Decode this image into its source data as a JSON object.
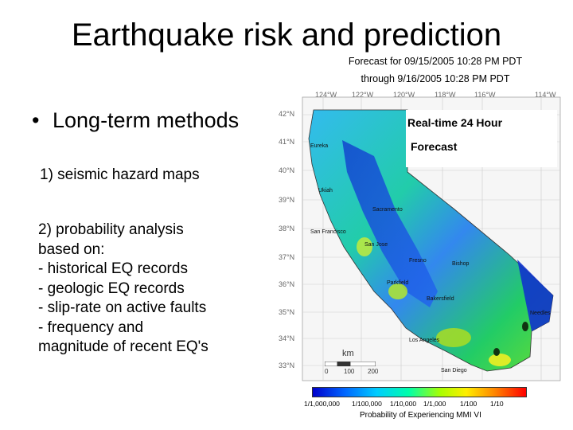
{
  "title": "Earthquake risk and prediction",
  "bullet": "Long-term methods",
  "item1": "1) seismic hazard maps",
  "item2_lines": [
    "2) probability analysis",
    "based on:",
    "- historical EQ records",
    "- geologic EQ records",
    "- slip-rate on active faults",
    "- frequency and",
    "magnitude of recent EQ's"
  ],
  "figure": {
    "forecast_line1": "Forecast for 09/15/2005 10:28 PM PDT",
    "forecast_line2": "through 9/16/2005 10:28 PM PDT",
    "realtime_line1": "Real-time 24 Hour",
    "realtime_line2": "Forecast",
    "longitudes": [
      "124°W",
      "122°W",
      "120°W",
      "118°W",
      "116°W",
      "114°W"
    ],
    "latitudes": [
      "42°N",
      "41°N",
      "40°N",
      "39°N",
      "38°N",
      "37°N",
      "36°N",
      "35°N",
      "34°N",
      "33°N"
    ],
    "cities": [
      "Eureka",
      "Ukiah",
      "Sacramento",
      "San Francisco",
      "San Jose",
      "Fresno",
      "Bishop",
      "Parkfield",
      "Bakersfield",
      "Needles",
      "Los Angeles",
      "San Diego"
    ],
    "scale_unit": "km",
    "scale_ticks": [
      "0",
      "100",
      "200"
    ],
    "colorbar_ticks": [
      "1/1,000,000",
      "1/100,000",
      "1/10,000",
      "1/1,000",
      "1/100",
      "1/10"
    ],
    "colorbar_title": "Probability of Experiencing MMI VI"
  }
}
